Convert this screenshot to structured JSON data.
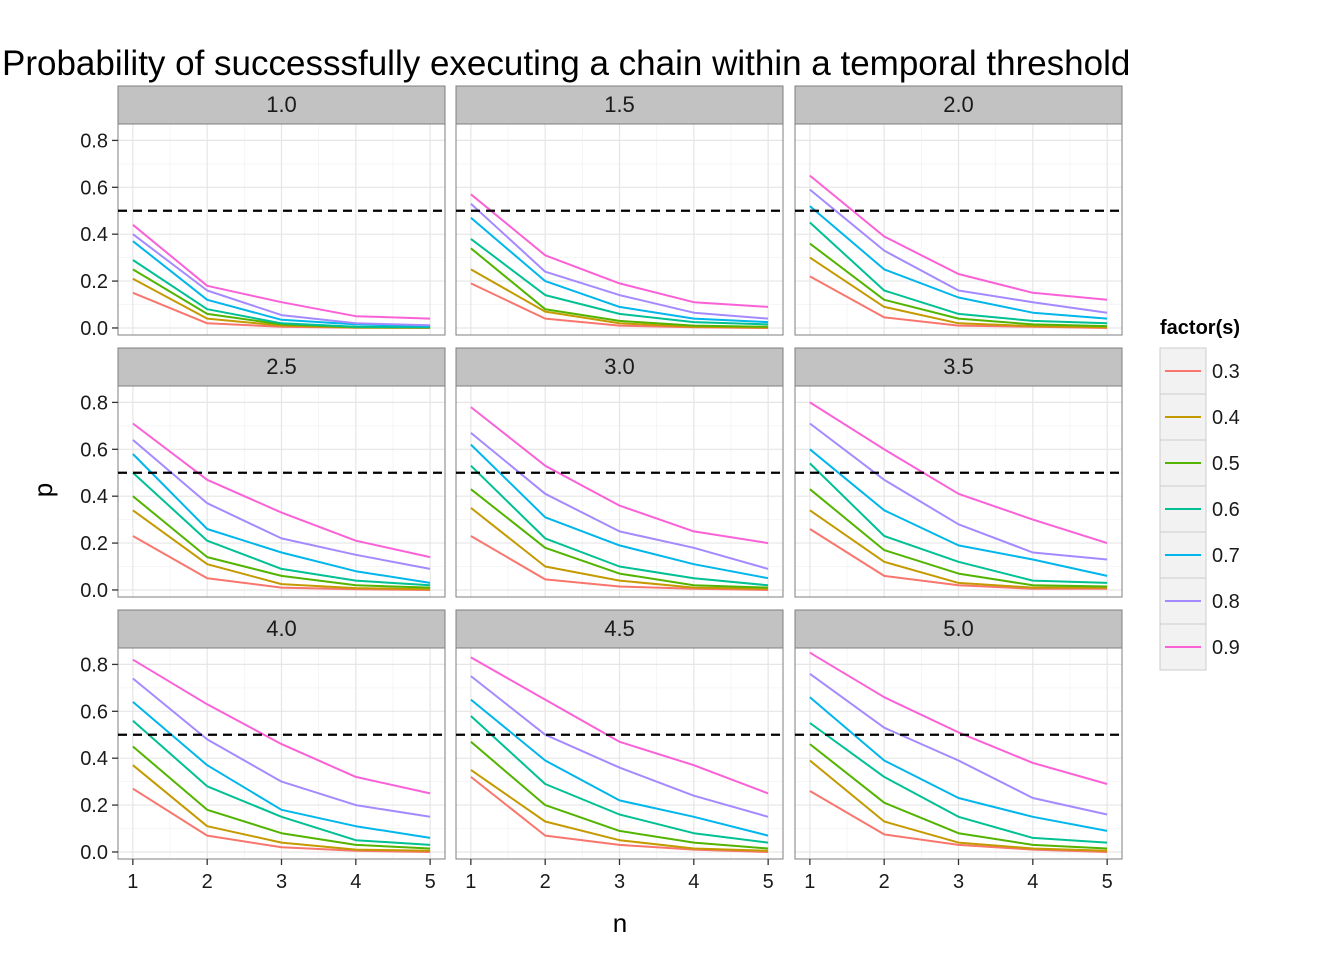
{
  "chart_data": {
    "type": "line",
    "title": "Probability of successsfully executing a chain within a temporal threshold",
    "xlabel": "n",
    "ylabel": "p",
    "x": [
      1,
      2,
      3,
      4,
      5
    ],
    "x_ticks": [
      "1",
      "2",
      "3",
      "4",
      "5"
    ],
    "xlim": [
      0.8,
      5.2
    ],
    "ylim": [
      -0.03,
      0.87
    ],
    "y_ticks": [
      "0.0",
      "0.2",
      "0.4",
      "0.6",
      "0.8"
    ],
    "y_tick_values": [
      0,
      0.2,
      0.4,
      0.6,
      0.8
    ],
    "hline": 0.5,
    "facet_layout": "3x3",
    "legend": {
      "title": "factor(s)",
      "position": "right",
      "entries": [
        "0.3",
        "0.4",
        "0.5",
        "0.6",
        "0.7",
        "0.8",
        "0.9"
      ],
      "colors": [
        "#F8766D",
        "#C49A00",
        "#53B400",
        "#00C094",
        "#00B6EB",
        "#A58AFF",
        "#FB61D7"
      ]
    },
    "panels": [
      {
        "label": "1.0",
        "series": [
          {
            "name": "0.3",
            "values": [
              0.15,
              0.02,
              0.005,
              0.001,
              0.0
            ]
          },
          {
            "name": "0.4",
            "values": [
              0.21,
              0.04,
              0.01,
              0.002,
              0.001
            ]
          },
          {
            "name": "0.5",
            "values": [
              0.25,
              0.06,
              0.015,
              0.003,
              0.002
            ]
          },
          {
            "name": "0.6",
            "values": [
              0.29,
              0.08,
              0.02,
              0.005,
              0.003
            ]
          },
          {
            "name": "0.7",
            "values": [
              0.37,
              0.12,
              0.035,
              0.015,
              0.008
            ]
          },
          {
            "name": "0.8",
            "values": [
              0.4,
              0.16,
              0.055,
              0.02,
              0.012
            ]
          },
          {
            "name": "0.9",
            "values": [
              0.44,
              0.18,
              0.11,
              0.05,
              0.04
            ]
          }
        ]
      },
      {
        "label": "1.5",
        "series": [
          {
            "name": "0.3",
            "values": [
              0.19,
              0.04,
              0.01,
              0.003,
              0.0
            ]
          },
          {
            "name": "0.4",
            "values": [
              0.25,
              0.07,
              0.02,
              0.005,
              0.002
            ]
          },
          {
            "name": "0.5",
            "values": [
              0.34,
              0.08,
              0.03,
              0.01,
              0.005
            ]
          },
          {
            "name": "0.6",
            "values": [
              0.38,
              0.14,
              0.06,
              0.025,
              0.015
            ]
          },
          {
            "name": "0.7",
            "values": [
              0.47,
              0.2,
              0.09,
              0.04,
              0.025
            ]
          },
          {
            "name": "0.8",
            "values": [
              0.53,
              0.24,
              0.14,
              0.065,
              0.04
            ]
          },
          {
            "name": "0.9",
            "values": [
              0.57,
              0.31,
              0.19,
              0.11,
              0.09
            ]
          }
        ]
      },
      {
        "label": "2.0",
        "series": [
          {
            "name": "0.3",
            "values": [
              0.22,
              0.045,
              0.01,
              0.005,
              0.0
            ]
          },
          {
            "name": "0.4",
            "values": [
              0.3,
              0.09,
              0.02,
              0.008,
              0.003
            ]
          },
          {
            "name": "0.5",
            "values": [
              0.36,
              0.12,
              0.04,
              0.015,
              0.008
            ]
          },
          {
            "name": "0.6",
            "values": [
              0.45,
              0.16,
              0.06,
              0.03,
              0.02
            ]
          },
          {
            "name": "0.7",
            "values": [
              0.52,
              0.25,
              0.13,
              0.065,
              0.04
            ]
          },
          {
            "name": "0.8",
            "values": [
              0.59,
              0.33,
              0.16,
              0.11,
              0.065
            ]
          },
          {
            "name": "0.9",
            "values": [
              0.65,
              0.39,
              0.23,
              0.15,
              0.12
            ]
          }
        ]
      },
      {
        "label": "2.5",
        "series": [
          {
            "name": "0.3",
            "values": [
              0.23,
              0.05,
              0.01,
              0.003,
              0.0
            ]
          },
          {
            "name": "0.4",
            "values": [
              0.34,
              0.11,
              0.025,
              0.008,
              0.003
            ]
          },
          {
            "name": "0.5",
            "values": [
              0.4,
              0.14,
              0.06,
              0.02,
              0.01
            ]
          },
          {
            "name": "0.6",
            "values": [
              0.5,
              0.21,
              0.09,
              0.04,
              0.02
            ]
          },
          {
            "name": "0.7",
            "values": [
              0.58,
              0.26,
              0.16,
              0.08,
              0.03
            ]
          },
          {
            "name": "0.8",
            "values": [
              0.64,
              0.37,
              0.22,
              0.15,
              0.09
            ]
          },
          {
            "name": "0.9",
            "values": [
              0.71,
              0.47,
              0.33,
              0.21,
              0.14
            ]
          }
        ]
      },
      {
        "label": "3.0",
        "series": [
          {
            "name": "0.3",
            "values": [
              0.23,
              0.045,
              0.015,
              0.005,
              0.0
            ]
          },
          {
            "name": "0.4",
            "values": [
              0.35,
              0.1,
              0.04,
              0.01,
              0.005
            ]
          },
          {
            "name": "0.5",
            "values": [
              0.43,
              0.18,
              0.07,
              0.02,
              0.01
            ]
          },
          {
            "name": "0.6",
            "values": [
              0.53,
              0.22,
              0.1,
              0.05,
              0.02
            ]
          },
          {
            "name": "0.7",
            "values": [
              0.62,
              0.31,
              0.19,
              0.11,
              0.05
            ]
          },
          {
            "name": "0.8",
            "values": [
              0.67,
              0.41,
              0.25,
              0.18,
              0.09
            ]
          },
          {
            "name": "0.9",
            "values": [
              0.78,
              0.53,
              0.36,
              0.25,
              0.2
            ]
          }
        ]
      },
      {
        "label": "3.5",
        "series": [
          {
            "name": "0.3",
            "values": [
              0.26,
              0.06,
              0.02,
              0.005,
              0.005
            ]
          },
          {
            "name": "0.4",
            "values": [
              0.34,
              0.12,
              0.03,
              0.01,
              0.01
            ]
          },
          {
            "name": "0.5",
            "values": [
              0.43,
              0.17,
              0.07,
              0.02,
              0.015
            ]
          },
          {
            "name": "0.6",
            "values": [
              0.54,
              0.23,
              0.12,
              0.04,
              0.03
            ]
          },
          {
            "name": "0.7",
            "values": [
              0.6,
              0.34,
              0.19,
              0.13,
              0.06
            ]
          },
          {
            "name": "0.8",
            "values": [
              0.71,
              0.47,
              0.28,
              0.16,
              0.13
            ]
          },
          {
            "name": "0.9",
            "values": [
              0.8,
              0.6,
              0.41,
              0.3,
              0.2
            ]
          }
        ]
      },
      {
        "label": "4.0",
        "series": [
          {
            "name": "0.3",
            "values": [
              0.27,
              0.07,
              0.02,
              0.005,
              0.0
            ]
          },
          {
            "name": "0.4",
            "values": [
              0.37,
              0.11,
              0.04,
              0.01,
              0.005
            ]
          },
          {
            "name": "0.5",
            "values": [
              0.45,
              0.18,
              0.08,
              0.03,
              0.015
            ]
          },
          {
            "name": "0.6",
            "values": [
              0.56,
              0.28,
              0.15,
              0.05,
              0.03
            ]
          },
          {
            "name": "0.7",
            "values": [
              0.64,
              0.37,
              0.18,
              0.11,
              0.06
            ]
          },
          {
            "name": "0.8",
            "values": [
              0.74,
              0.48,
              0.3,
              0.2,
              0.15
            ]
          },
          {
            "name": "0.9",
            "values": [
              0.82,
              0.63,
              0.46,
              0.32,
              0.25
            ]
          }
        ]
      },
      {
        "label": "4.5",
        "series": [
          {
            "name": "0.3",
            "values": [
              0.32,
              0.07,
              0.03,
              0.01,
              0.0
            ]
          },
          {
            "name": "0.4",
            "values": [
              0.35,
              0.13,
              0.05,
              0.015,
              0.005
            ]
          },
          {
            "name": "0.5",
            "values": [
              0.47,
              0.2,
              0.09,
              0.04,
              0.015
            ]
          },
          {
            "name": "0.6",
            "values": [
              0.58,
              0.29,
              0.16,
              0.08,
              0.04
            ]
          },
          {
            "name": "0.7",
            "values": [
              0.65,
              0.39,
              0.22,
              0.15,
              0.07
            ]
          },
          {
            "name": "0.8",
            "values": [
              0.75,
              0.5,
              0.36,
              0.24,
              0.15
            ]
          },
          {
            "name": "0.9",
            "values": [
              0.83,
              0.65,
              0.47,
              0.37,
              0.25
            ]
          }
        ]
      },
      {
        "label": "5.0",
        "series": [
          {
            "name": "0.3",
            "values": [
              0.26,
              0.075,
              0.03,
              0.01,
              0.0
            ]
          },
          {
            "name": "0.4",
            "values": [
              0.39,
              0.13,
              0.04,
              0.015,
              0.005
            ]
          },
          {
            "name": "0.5",
            "values": [
              0.46,
              0.21,
              0.08,
              0.03,
              0.015
            ]
          },
          {
            "name": "0.6",
            "values": [
              0.55,
              0.32,
              0.15,
              0.06,
              0.04
            ]
          },
          {
            "name": "0.7",
            "values": [
              0.66,
              0.39,
              0.23,
              0.15,
              0.09
            ]
          },
          {
            "name": "0.8",
            "values": [
              0.76,
              0.53,
              0.39,
              0.23,
              0.16
            ]
          },
          {
            "name": "0.9",
            "values": [
              0.85,
              0.66,
              0.51,
              0.38,
              0.29
            ]
          }
        ]
      }
    ]
  }
}
